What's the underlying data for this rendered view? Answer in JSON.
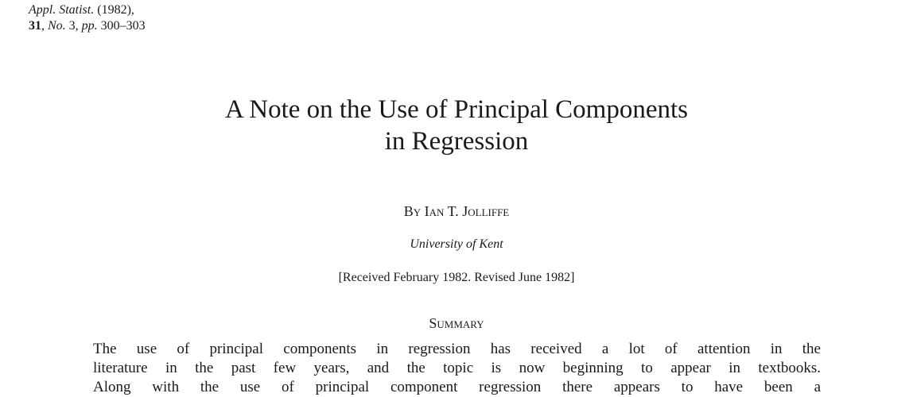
{
  "citation": {
    "journal": "Appl. Statist.",
    "year": "(1982),",
    "volume": "31",
    "number_label": "No.",
    "number": "3,",
    "pages_label": "pp.",
    "pages": "300–303"
  },
  "title": {
    "line1": "A Note on the Use of Principal Components",
    "line2": "in Regression"
  },
  "author": {
    "by": "By",
    "name": "Ian T. Jolliffe"
  },
  "affiliation": "University of Kent",
  "received": "[Received February 1982. Revised June 1982]",
  "summary": {
    "heading": "Summary",
    "lines": [
      "The use of principal components in regression has received a lot of attention in the",
      "literature in the past few years, and the topic is now beginning to appear in textbooks.",
      "Along with the use of principal component regression there appears to have been a"
    ]
  }
}
